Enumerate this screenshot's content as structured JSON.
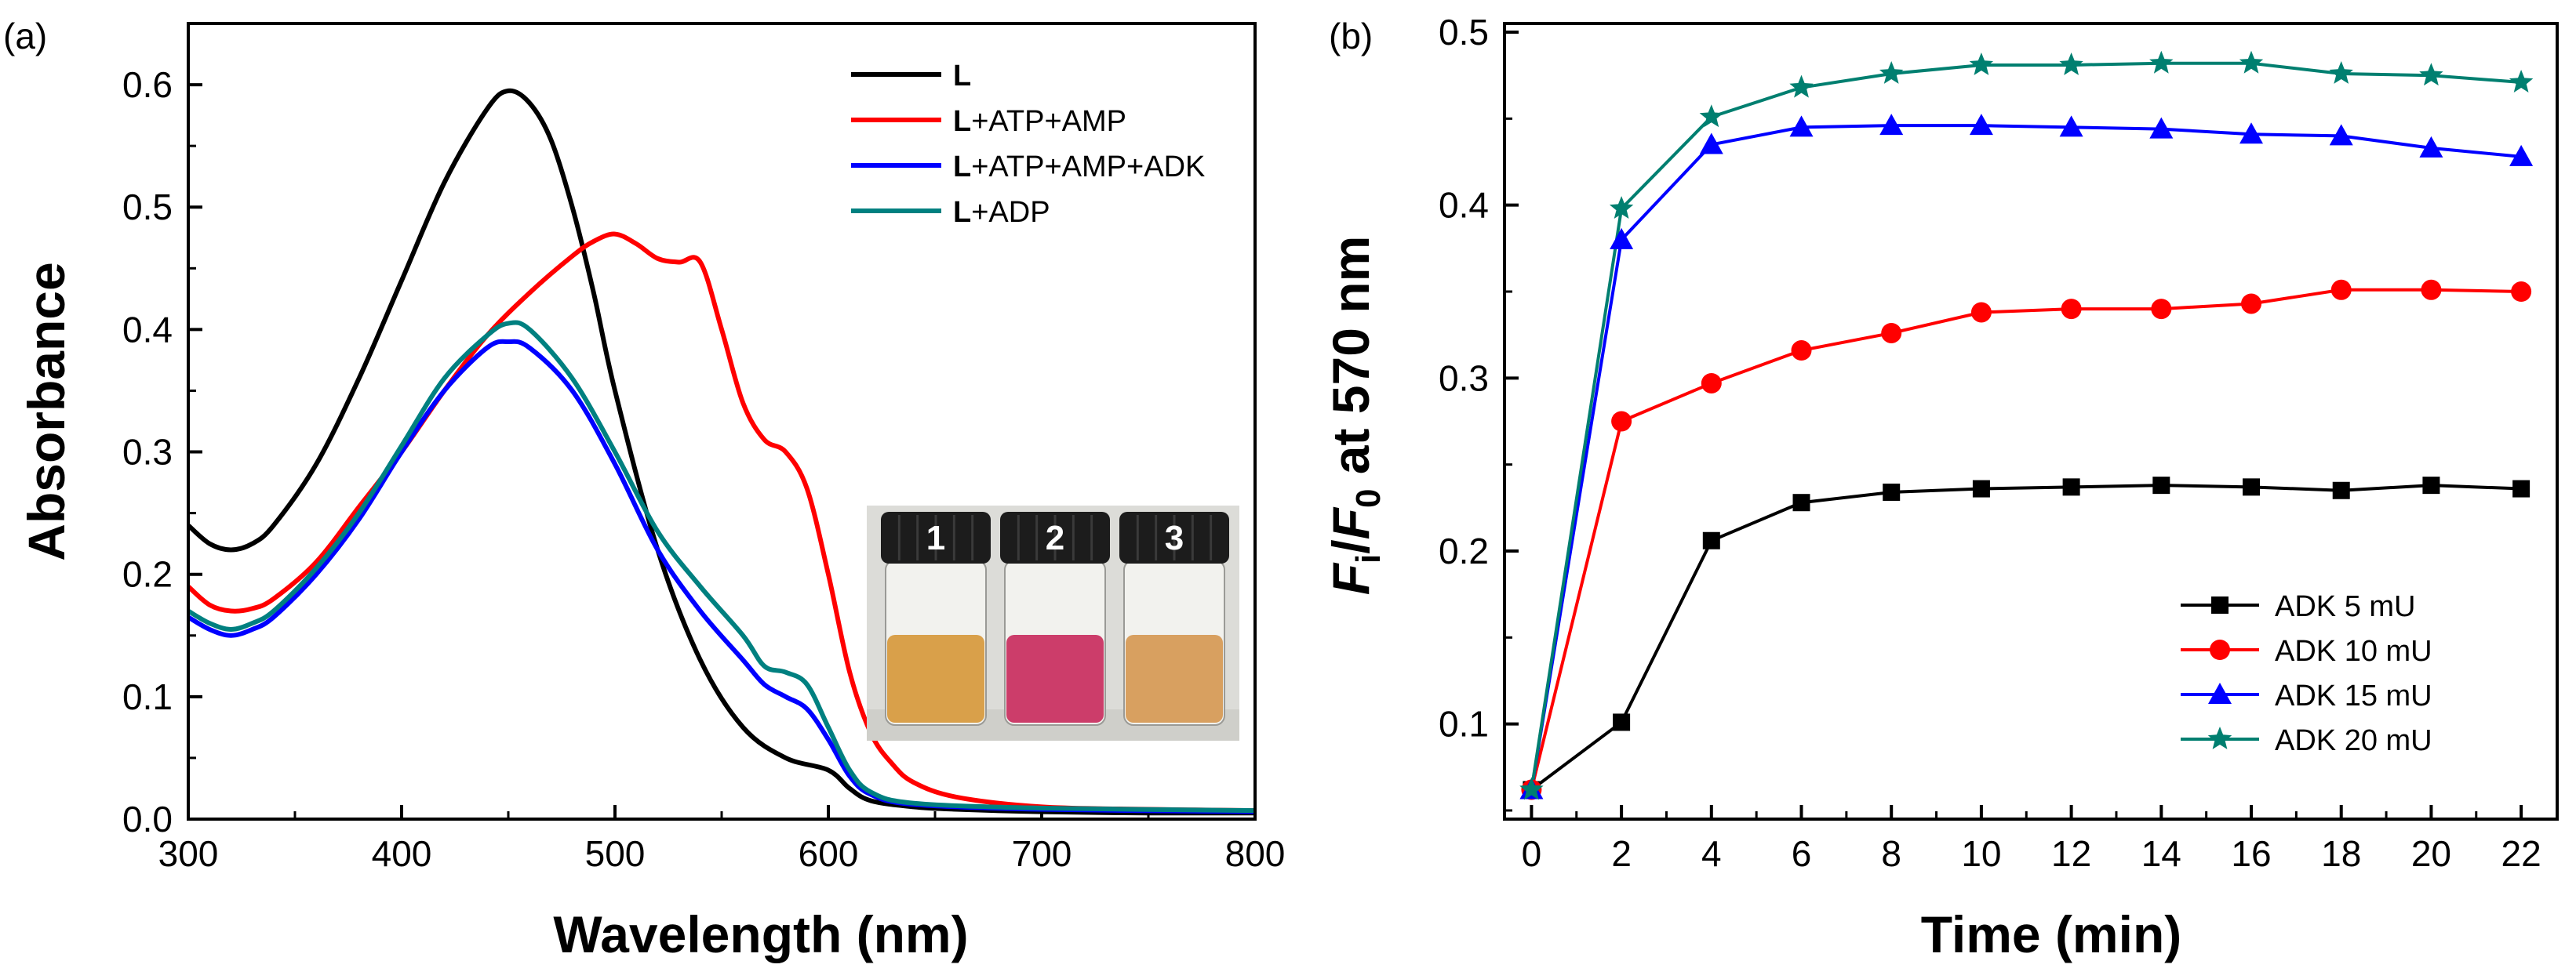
{
  "chart_data": [
    {
      "panel_label": "(a)",
      "type": "line",
      "xlabel": "Wavelength (nm)",
      "ylabel": "Absorbance",
      "xlim": [
        300,
        800
      ],
      "ylim": [
        0,
        0.65
      ],
      "xticks": [
        300,
        400,
        500,
        600,
        700,
        800
      ],
      "yticks": [
        0.0,
        0.1,
        0.2,
        0.3,
        0.4,
        0.5,
        0.6
      ],
      "grid": false,
      "legend_position": "top-right",
      "series": [
        {
          "name_bold": "L",
          "name_rest": "",
          "color": "#000000",
          "x": [
            300,
            310,
            320,
            330,
            340,
            360,
            380,
            400,
            420,
            440,
            450,
            460,
            470,
            480,
            490,
            500,
            520,
            540,
            560,
            580,
            600,
            610,
            620,
            640,
            660,
            700,
            750,
            800
          ],
          "y": [
            0.24,
            0.225,
            0.22,
            0.225,
            0.24,
            0.29,
            0.36,
            0.44,
            0.52,
            0.58,
            0.595,
            0.585,
            0.555,
            0.5,
            0.43,
            0.35,
            0.22,
            0.13,
            0.075,
            0.05,
            0.04,
            0.025,
            0.015,
            0.01,
            0.008,
            0.006,
            0.005,
            0.005
          ]
        },
        {
          "name_bold": "L",
          "name_rest": "+ATP+AMP",
          "color": "#ff0000",
          "x": [
            300,
            310,
            320,
            330,
            340,
            360,
            380,
            400,
            420,
            440,
            460,
            480,
            490,
            500,
            510,
            520,
            530,
            540,
            550,
            560,
            570,
            580,
            590,
            600,
            610,
            620,
            630,
            640,
            660,
            700,
            750,
            800
          ],
          "y": [
            0.19,
            0.175,
            0.17,
            0.172,
            0.18,
            0.21,
            0.255,
            0.3,
            0.35,
            0.395,
            0.43,
            0.46,
            0.472,
            0.478,
            0.47,
            0.458,
            0.455,
            0.455,
            0.4,
            0.34,
            0.31,
            0.3,
            0.27,
            0.2,
            0.12,
            0.07,
            0.045,
            0.03,
            0.018,
            0.01,
            0.008,
            0.007
          ]
        },
        {
          "name_bold": "L",
          "name_rest": "+ATP+AMP+ADK",
          "color": "#0000ff",
          "x": [
            300,
            310,
            320,
            330,
            340,
            360,
            380,
            400,
            420,
            440,
            450,
            460,
            480,
            500,
            520,
            540,
            560,
            570,
            580,
            590,
            600,
            610,
            620,
            640,
            700,
            800
          ],
          "y": [
            0.165,
            0.155,
            0.15,
            0.155,
            0.165,
            0.2,
            0.245,
            0.3,
            0.35,
            0.385,
            0.39,
            0.385,
            0.35,
            0.29,
            0.22,
            0.17,
            0.13,
            0.11,
            0.1,
            0.09,
            0.065,
            0.035,
            0.02,
            0.012,
            0.008,
            0.006
          ]
        },
        {
          "name_bold": "L",
          "name_rest": "+ADP",
          "color": "#008080",
          "x": [
            300,
            310,
            320,
            330,
            340,
            360,
            380,
            400,
            420,
            440,
            450,
            460,
            480,
            500,
            520,
            540,
            560,
            570,
            580,
            590,
            600,
            610,
            620,
            640,
            700,
            800
          ],
          "y": [
            0.17,
            0.16,
            0.155,
            0.16,
            0.17,
            0.205,
            0.25,
            0.305,
            0.36,
            0.395,
            0.405,
            0.4,
            0.36,
            0.3,
            0.235,
            0.19,
            0.15,
            0.125,
            0.12,
            0.11,
            0.075,
            0.04,
            0.022,
            0.013,
            0.009,
            0.007
          ]
        }
      ],
      "inset": {
        "type": "photo",
        "vial_labels": [
          "1",
          "2",
          "3"
        ],
        "liquid_colors": [
          "#d9a04a",
          "#cc3d6a",
          "#d8a060"
        ]
      }
    },
    {
      "panel_label": "(b)",
      "type": "line",
      "xlabel": "Time (min)",
      "ylabel_main": "F",
      "ylabel_sub_i": "i",
      "ylabel_slash": "/",
      "ylabel_main2": "F",
      "ylabel_sub_0": "0",
      "ylabel_tail": " at 570 nm",
      "xlim": [
        -0.6,
        22.8
      ],
      "ylim": [
        0.045,
        0.505
      ],
      "xticks": [
        0,
        2,
        4,
        6,
        8,
        10,
        12,
        14,
        16,
        18,
        20,
        22
      ],
      "yticks": [
        0.1,
        0.2,
        0.3,
        0.4,
        0.5
      ],
      "grid": false,
      "legend_position": "bottom-right",
      "x": [
        0,
        2,
        4,
        6,
        8,
        10,
        12,
        14,
        16,
        18,
        20,
        22
      ],
      "series": [
        {
          "name": "ADK 5 mU",
          "color": "#000000",
          "marker": "square",
          "values": [
            0.062,
            0.101,
            0.206,
            0.228,
            0.234,
            0.236,
            0.237,
            0.238,
            0.237,
            0.235,
            0.238,
            0.236
          ]
        },
        {
          "name": "ADK 10 mU",
          "color": "#ff0000",
          "marker": "circle",
          "values": [
            0.062,
            0.275,
            0.297,
            0.316,
            0.326,
            0.338,
            0.34,
            0.34,
            0.343,
            0.351,
            0.351,
            0.35
          ]
        },
        {
          "name": "ADK 15 mU",
          "color": "#0000ff",
          "marker": "triangle",
          "values": [
            0.062,
            0.38,
            0.435,
            0.445,
            0.446,
            0.446,
            0.445,
            0.444,
            0.441,
            0.44,
            0.433,
            0.428
          ]
        },
        {
          "name": "ADK 20 mU",
          "color": "#007f70",
          "marker": "star",
          "values": [
            0.062,
            0.398,
            0.451,
            0.468,
            0.476,
            0.481,
            0.481,
            0.482,
            0.482,
            0.476,
            0.475,
            0.471
          ]
        }
      ]
    }
  ]
}
